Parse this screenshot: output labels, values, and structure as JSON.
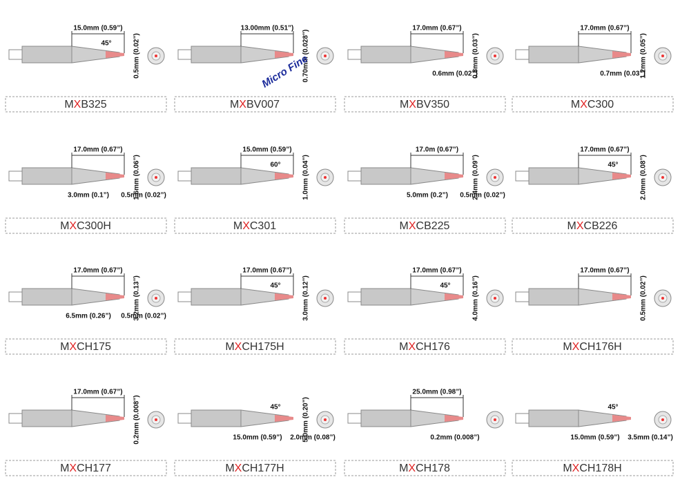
{
  "note": "Micro Fine",
  "tips": [
    {
      "name": "MXB325",
      "length": "15.0mm (0.59”)",
      "angle": "45°",
      "vertical": "0.5mm (0.02”)",
      "bottom": []
    },
    {
      "name": "MXBV007",
      "length": "13.00mm (0.51”)",
      "vertical": "0.70mm (0.028”)",
      "bottom": []
    },
    {
      "name": "MXBV350",
      "length": "17.0mm (0.67”)",
      "vertical": "0.8mm (0.03”)",
      "bottom": [
        "0.6mm (0.02”)"
      ]
    },
    {
      "name": "MXC300",
      "length": "17.0mm (0.67”)",
      "vertical": "1.2mm (0.05”)",
      "bottom": [
        "0.7mm (0.03”)"
      ]
    },
    {
      "name": "MXC300H",
      "length": "17.0mm (0.67”)",
      "vertical": "1.6mm (0.06”)",
      "bottom": [
        "3.0mm (0.1”)",
        "0.5mm (0.02”)"
      ]
    },
    {
      "name": "MXC301",
      "length": "15.0mm (0.59”)",
      "angle": "60°",
      "vertical": "1.0mm (0.04”)",
      "bottom": []
    },
    {
      "name": "MXCB225",
      "length": "17.0m (0.67”)",
      "vertical": "2.4mm (0.09”)",
      "bottom": [
        "5.0mm (0.2”)",
        "0.5mm (0.02”)"
      ]
    },
    {
      "name": "MXCB226",
      "length": "17.0mm (0.67”)",
      "angle": "45°",
      "vertical": "2.0mm (0.08”)",
      "bottom": []
    },
    {
      "name": "MXCH175",
      "length": "17.0mm (0.67”)",
      "vertical": "3.2mm (0.13”)",
      "bottom": [
        "6.5mm (0.26”)",
        "0.5mm (0.02”)"
      ]
    },
    {
      "name": "MXCH175H",
      "length": "17.0mm (0.67”)",
      "angle": "45°",
      "vertical": "3.0mm (0.12”)",
      "bottom": []
    },
    {
      "name": "MXCH176",
      "length": "17.0mm (0.67”)",
      "angle": "45°",
      "vertical": "4.0mm (0.16”)",
      "bottom": []
    },
    {
      "name": "MXCH176H",
      "length": "17.0mm (0.67”)",
      "vertical": "0.5mm (0.02”)",
      "bottom": []
    },
    {
      "name": "MXCH177",
      "length": "17.0mm (0.67”)",
      "vertical": "0.2mm (0.008”)",
      "bottom": []
    },
    {
      "name": "MXCH177H",
      "angle": "45°",
      "vertical": "5.0mm (0.20”)",
      "bottom": [
        "15.0mm (0.59”)",
        "2.0mm (0.08”)"
      ]
    },
    {
      "name": "MXCH178",
      "length": "25.0mm (0.98”)",
      "bottom": [
        "0.2mm (0.008”)"
      ]
    },
    {
      "name": "MXCH178H",
      "angle": "45°",
      "bottom": [
        "15.0mm (0.59”)",
        "3.5mm (0.14”)"
      ]
    }
  ]
}
